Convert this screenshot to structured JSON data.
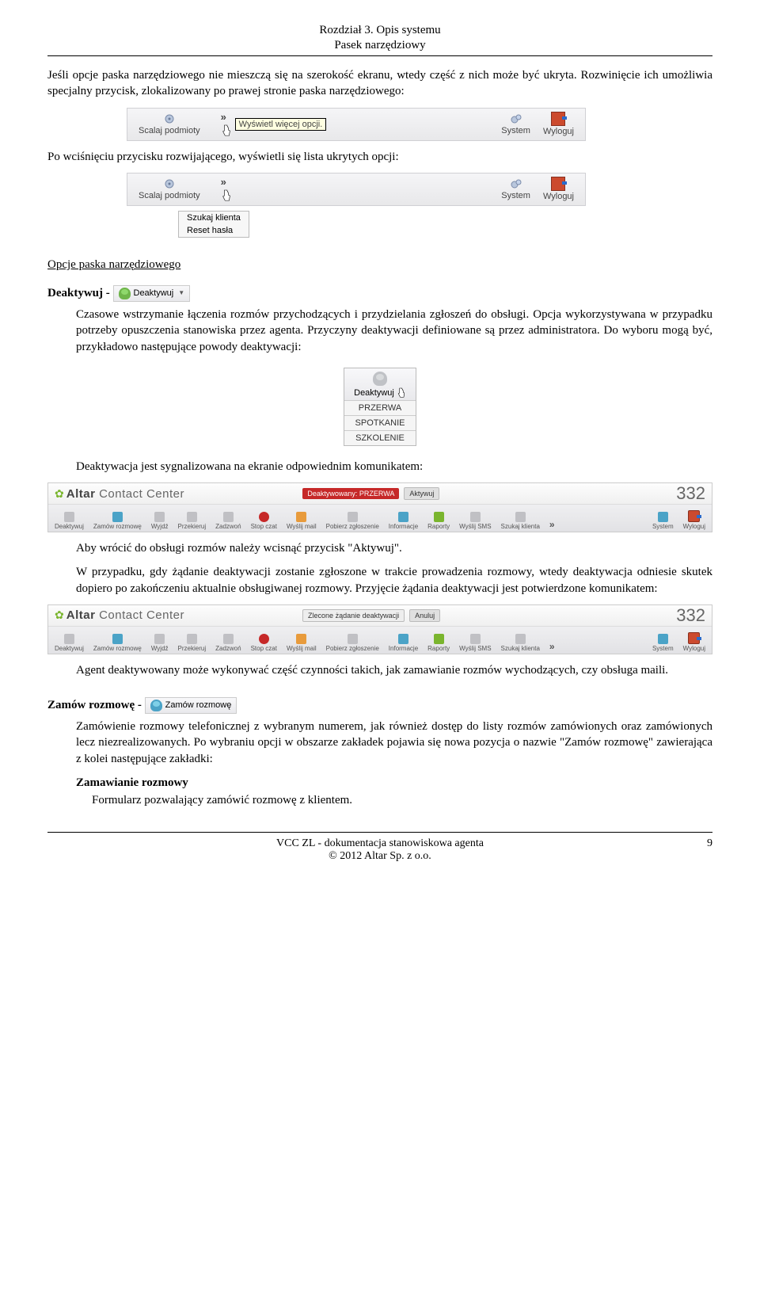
{
  "header": {
    "chapter": "Rozdział 3. Opis systemu",
    "subtitle": "Pasek narzędziowy"
  },
  "p1": "Jeśli opcje paska narzędziowego nie mieszczą się na szerokość ekranu, wtedy część z nich może być ukryta. Rozwinięcie ich umożliwia specjalny przycisk, zlokalizowany po prawej stronie paska narzędziowego:",
  "toolbar1": {
    "item1": "Scalaj podmioty",
    "tooltip": "Wyświetl więcej opcji.",
    "item2": "System",
    "item3": "Wyloguj"
  },
  "p2": "Po wciśnięciu przycisku rozwijającego, wyświetli się lista ukrytych opcji:",
  "toolbar2": {
    "item1": "Scalaj podmioty",
    "chev": "»",
    "menu1": "Szukaj klienta",
    "menu2": "Reset hasła",
    "item2": "System",
    "item3": "Wyloguj"
  },
  "section_title": "Opcje paska narzędziowego",
  "deaktywuj": {
    "label": "Deaktywuj - ",
    "btn_text": "Deaktywuj",
    "desc": "Czasowe wstrzymanie łączenia rozmów przychodzących i przydzielania zgłoszeń do obsługi. Opcja wykorzystywana w przypadku potrzeby opuszczenia stanowiska przez agenta. Przyczyny deaktywacji definiowane są przez administratora. Do wyboru mogą być, przykładowo następujące powody deaktywacji:",
    "menu_title": "Deaktywuj",
    "opt1": "PRZERWA",
    "opt2": "SPOTKANIE",
    "opt3": "SZKOLENIE"
  },
  "p3": "Deaktywacja jest sygnalizowana na ekranie odpowiednim komunikatem:",
  "widebar1": {
    "logo1": "Altar",
    "logo2": "Contact Center",
    "badge": "Deaktywowany: PRZERWA",
    "btn": "Aktywuj",
    "num": "332",
    "items": [
      "Deaktywuj",
      "Zamów rozmowę",
      "Wyjdź",
      "Przekieruj",
      "Zadzwoń",
      "Stop czat",
      "Wyślij mail",
      "Pobierz zgłoszenie",
      "Informacje",
      "Raporty",
      "Wyślij SMS",
      "Szukaj klienta",
      "»",
      "System",
      "Wyloguj"
    ]
  },
  "p4": "Aby wrócić do obsługi rozmów należy wcisnąć przycisk \"Aktywuj\".",
  "p5": "W przypadku, gdy żądanie deaktywacji zostanie zgłoszone w trakcie prowadzenia rozmowy, wtedy deaktywacja odniesie skutek dopiero po zakończeniu aktualnie obsługiwanej rozmowy. Przyjęcie żądania deaktywacji jest potwierdzone komunikatem:",
  "widebar2": {
    "logo1": "Altar",
    "logo2": "Contact Center",
    "badge": "Zlecone żądanie deaktywacji",
    "btn": "Anuluj",
    "num": "332",
    "items": [
      "Deaktywuj",
      "Zamów rozmowę",
      "Wyjdź",
      "Przekieruj",
      "Zadzwoń",
      "Stop czat",
      "Wyślij mail",
      "Pobierz zgłoszenie",
      "Informacje",
      "Raporty",
      "Wyślij SMS",
      "Szukaj klienta",
      "»",
      "System",
      "Wyloguj"
    ]
  },
  "p6": "Agent deaktywowany może wykonywać część czynności takich, jak zamawianie rozmów wychodzących, czy obsługa maili.",
  "zamow": {
    "label": "Zamów rozmowę - ",
    "btn_text": "Zamów rozmowę",
    "desc": "Zamówienie rozmowy telefonicznej z wybranym numerem, jak również dostęp do listy rozmów zamówionych oraz zamówionych lecz niezrealizowanych. Po wybraniu opcji w obszarze zakładek pojawia się nowa pozycja o nazwie \"Zamów rozmowę\" zawierająca z kolei następujące zakładki:",
    "sub_title": "Zamawianie rozmowy",
    "sub_desc": "Formularz pozwalający zamówić rozmowę z klientem."
  },
  "footer": {
    "line1": "VCC ZL - dokumentacja stanowiskowa agenta",
    "line2": "© 2012 Altar Sp. z o.o.",
    "page": "9"
  }
}
